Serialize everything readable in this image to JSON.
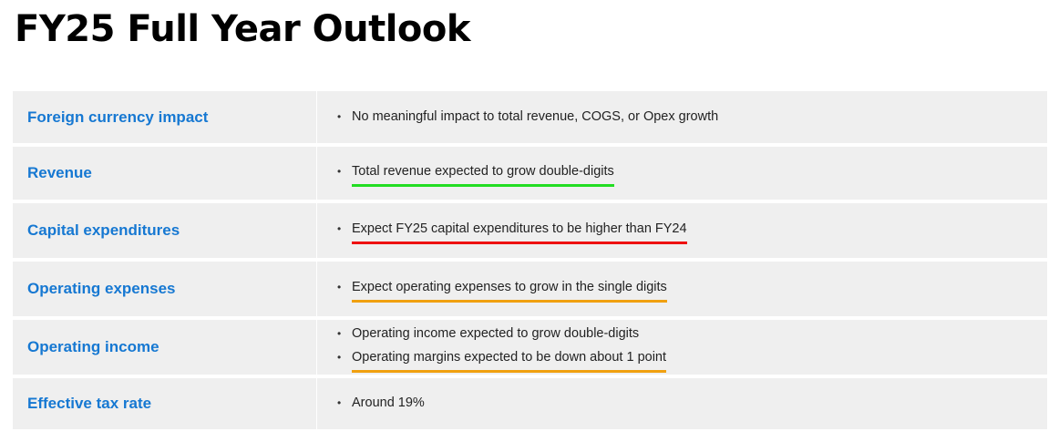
{
  "title": "FY25 Full Year Outlook",
  "colors": {
    "label_blue": "#1678d2",
    "row_background": "#efefef",
    "underline_green": "#22dd22",
    "underline_red": "#ee1111",
    "underline_orange": "#f0a010"
  },
  "rows": [
    {
      "label": "Foreign currency impact",
      "bullets": [
        {
          "text": "No meaningful impact to total revenue, COGS, or Opex growth",
          "underline": "none"
        }
      ]
    },
    {
      "label": "Revenue",
      "bullets": [
        {
          "text": "Total revenue expected to grow double-digits",
          "underline": "green"
        }
      ]
    },
    {
      "label": "Capital expenditures",
      "bullets": [
        {
          "text": "Expect FY25 capital expenditures to be higher than FY24",
          "underline": "red"
        }
      ]
    },
    {
      "label": "Operating expenses",
      "bullets": [
        {
          "text": "Expect operating expenses to grow in the single digits",
          "underline": "orange"
        }
      ]
    },
    {
      "label": "Operating income",
      "bullets": [
        {
          "text": "Operating income expected to grow double-digits",
          "underline": "none"
        },
        {
          "text": "Operating margins expected to be down about 1 point",
          "underline": "orange"
        }
      ]
    },
    {
      "label": "Effective tax rate",
      "bullets": [
        {
          "text": "Around 19%",
          "underline": "none"
        }
      ]
    }
  ]
}
